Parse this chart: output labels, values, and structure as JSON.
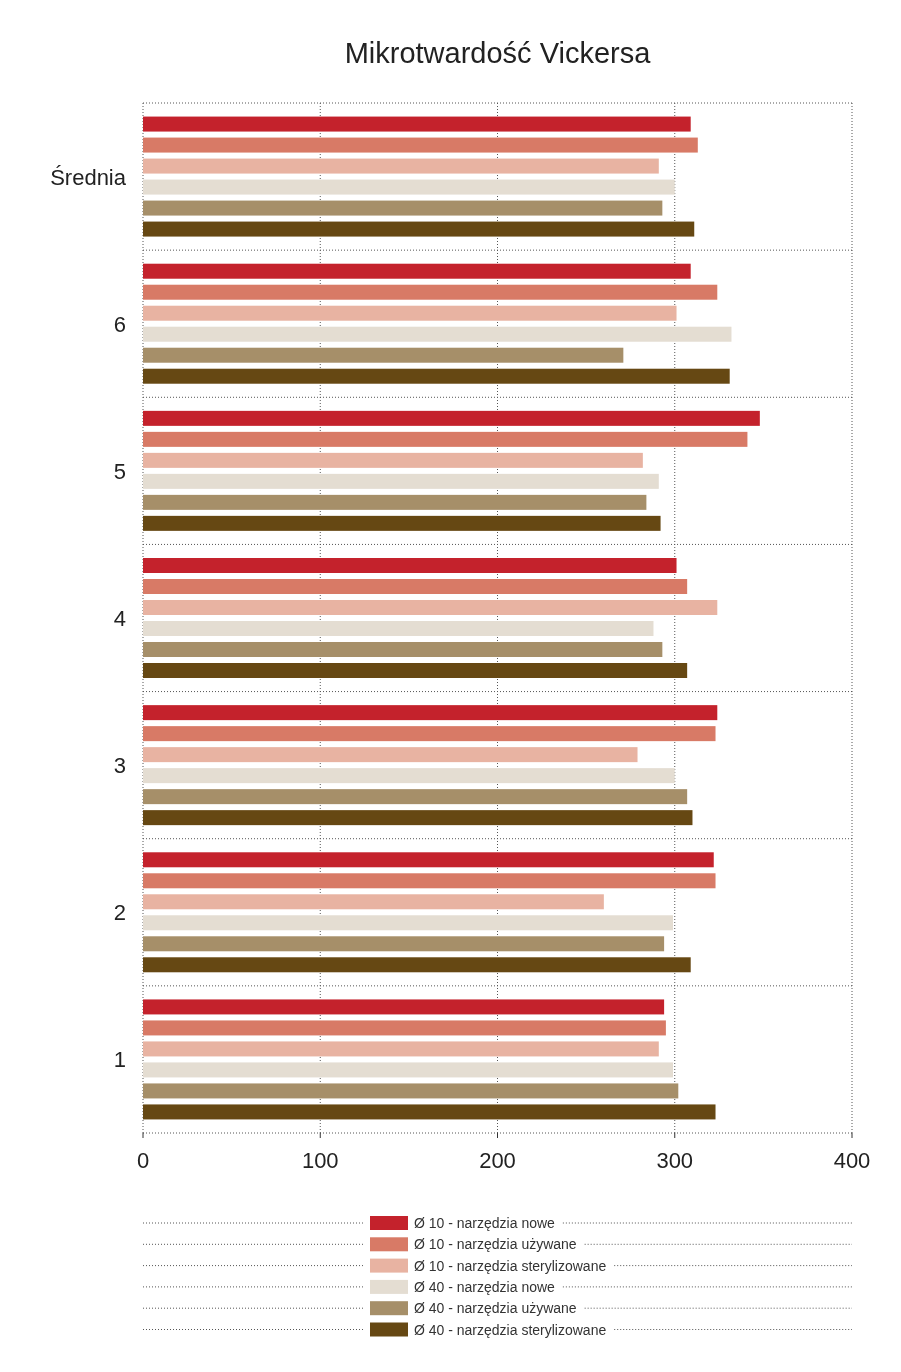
{
  "chart_data": {
    "type": "bar",
    "orientation": "horizontal",
    "title": "Mikrotwardość Vickersa",
    "categories": [
      "Średnia",
      "6",
      "5",
      "4",
      "3",
      "2",
      "1"
    ],
    "series": [
      {
        "name": "Ø 10 - narzędzia nowe",
        "color": "#c4222c",
        "values": [
          309,
          309,
          348,
          301,
          324,
          322,
          294
        ]
      },
      {
        "name": "Ø 10 - narzędzia używane",
        "color": "#d87a66",
        "values": [
          313,
          324,
          341,
          307,
          323,
          323,
          295
        ]
      },
      {
        "name": "Ø 10 - narzędzia sterylizowane",
        "color": "#e8b3a2",
        "values": [
          291,
          301,
          282,
          324,
          279,
          260,
          291
        ]
      },
      {
        "name": "Ø 40 - narzędzia nowe",
        "color": "#e4ddd2",
        "values": [
          300,
          332,
          291,
          288,
          300,
          299,
          299
        ]
      },
      {
        "name": "Ø 40 - narzędzia używane",
        "color": "#a68f69",
        "values": [
          293,
          271,
          284,
          293,
          307,
          294,
          302
        ]
      },
      {
        "name": "Ø 40 - narzędzia sterylizowane",
        "color": "#664813",
        "values": [
          311,
          331,
          292,
          307,
          310,
          309,
          323
        ]
      }
    ],
    "xlim": [
      0,
      400
    ],
    "xticks": [
      0,
      100,
      200,
      300,
      400
    ],
    "grid": true,
    "legend": "bottom"
  }
}
